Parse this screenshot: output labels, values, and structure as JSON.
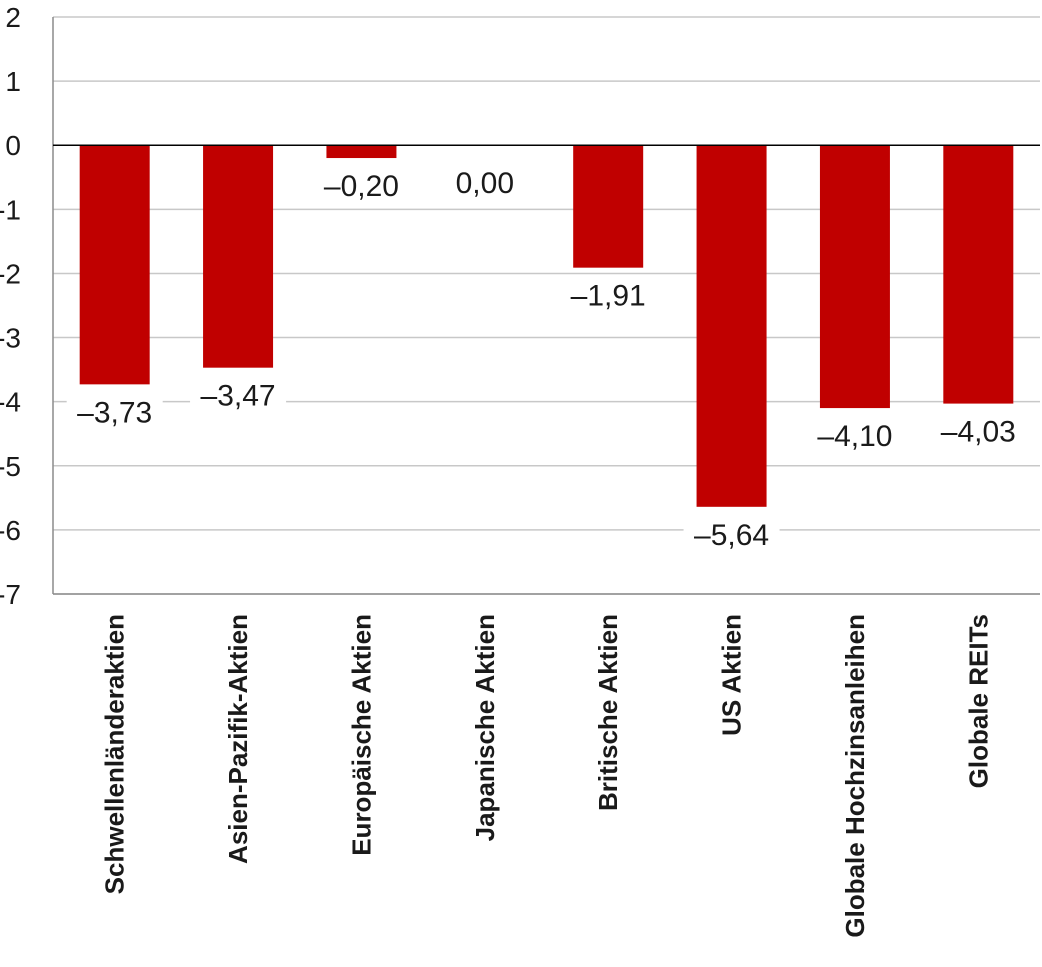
{
  "chart_data": {
    "type": "bar",
    "title": "",
    "xlabel": "",
    "ylabel": "",
    "ylim": [
      -7,
      2
    ],
    "yticks": [
      2,
      1,
      0,
      -1,
      -2,
      -3,
      -4,
      -5,
      -6,
      -7
    ],
    "ytick_labels": [
      "2",
      "1",
      "0",
      "-1",
      "-2",
      "-3",
      "-4",
      "-5",
      "-6",
      "-7"
    ],
    "categories": [
      "Schwellenländeraktien",
      "Asien-Pazifik-Aktien",
      "Europäische Aktien",
      "Japanische Aktien",
      "Britische Aktien",
      "US Aktien",
      "Globale Hochzinsanleihen",
      "Globale REITs"
    ],
    "values": [
      -3.73,
      -3.47,
      -0.2,
      0.0,
      -1.91,
      -5.64,
      -4.1,
      -4.03
    ],
    "data_labels": [
      "–3,73",
      "–3,47",
      "–0,20",
      "0,00",
      "–1,91",
      "–5,64",
      "–4,10",
      "–4,03"
    ],
    "bar_color": "#c00000",
    "grid": true,
    "legend": "none"
  }
}
